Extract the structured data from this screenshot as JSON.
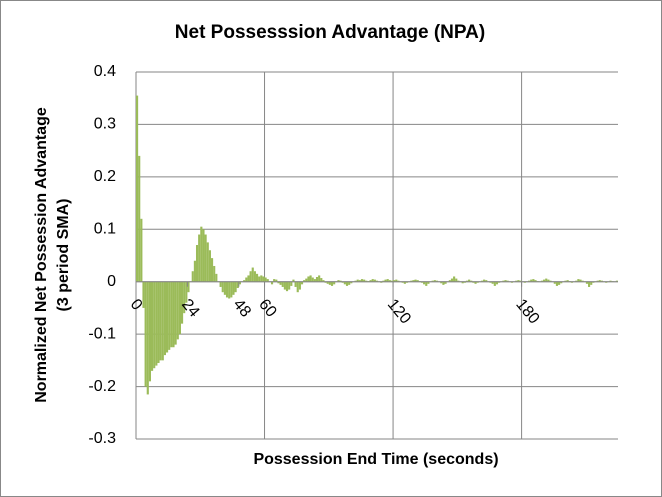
{
  "chart_data": {
    "type": "bar",
    "title": "Net Possesssion Advantage (NPA)",
    "x_label": "Possession End Time (seconds)",
    "y_label": [
      "Normalized Net Possession Advantage",
      "(3 period SMA)"
    ],
    "color": "#9bbb59",
    "x": [
      0,
      1,
      2,
      3,
      4,
      5,
      6,
      7,
      8,
      9,
      10,
      11,
      12,
      13,
      14,
      15,
      16,
      17,
      18,
      19,
      20,
      21,
      22,
      23,
      24,
      25,
      26,
      27,
      28,
      29,
      30,
      31,
      32,
      33,
      34,
      35,
      36,
      37,
      38,
      39,
      40,
      41,
      42,
      43,
      44,
      45,
      46,
      47,
      48,
      49,
      50,
      51,
      52,
      53,
      54,
      55,
      56,
      57,
      58,
      59,
      60,
      61,
      62,
      63,
      64,
      65,
      66,
      67,
      68,
      69,
      70,
      71,
      72,
      73,
      74,
      75,
      76,
      77,
      78,
      79,
      80,
      81,
      82,
      83,
      84,
      85,
      86,
      87,
      88,
      89,
      90,
      91,
      92,
      93,
      94,
      95,
      96,
      97,
      98,
      99,
      100,
      101,
      102,
      103,
      104,
      105,
      106,
      107,
      108,
      109,
      110,
      111,
      112,
      113,
      114,
      115,
      116,
      117,
      118,
      119,
      120,
      121,
      122,
      123,
      124,
      125,
      126,
      127,
      128,
      129,
      130,
      131,
      132,
      133,
      134,
      135,
      136,
      137,
      138,
      139,
      140,
      141,
      142,
      143,
      144,
      145,
      146,
      147,
      148,
      149,
      150,
      151,
      152,
      153,
      154,
      155,
      156,
      157,
      158,
      159,
      160,
      161,
      162,
      163,
      164,
      165,
      166,
      167,
      168,
      169,
      170,
      171,
      172,
      173,
      174,
      175,
      176,
      177,
      178,
      179,
      180,
      181,
      182,
      183,
      184,
      185,
      186,
      187,
      188,
      189,
      190,
      191,
      192,
      193,
      194,
      195,
      196,
      197,
      198,
      199,
      200,
      201,
      202,
      203,
      204,
      205,
      206,
      207,
      208,
      209,
      210,
      211,
      212,
      213,
      214,
      215,
      216,
      217,
      218,
      219,
      220,
      221,
      222,
      223,
      224
    ],
    "values": [
      0.355,
      0.24,
      0.12,
      -0.05,
      -0.2,
      -0.215,
      -0.19,
      -0.17,
      -0.165,
      -0.16,
      -0.155,
      -0.15,
      -0.15,
      -0.14,
      -0.135,
      -0.13,
      -0.125,
      -0.125,
      -0.12,
      -0.11,
      -0.1,
      -0.08,
      -0.06,
      -0.04,
      -0.02,
      0.0,
      0.02,
      0.04,
      0.07,
      0.09,
      0.105,
      0.1,
      0.09,
      0.075,
      0.06,
      0.045,
      0.03,
      0.015,
      0.0,
      -0.01,
      -0.02,
      -0.025,
      -0.03,
      -0.032,
      -0.03,
      -0.025,
      -0.02,
      -0.012,
      -0.005,
      0.0,
      0.003,
      0.008,
      0.012,
      0.02,
      0.027,
      0.02,
      0.015,
      0.01,
      0.012,
      0.01,
      0.008,
      0.005,
      0.0,
      -0.005,
      0.005,
      0.004,
      -0.003,
      -0.006,
      -0.01,
      -0.015,
      -0.018,
      -0.015,
      -0.008,
      0.004,
      -0.01,
      -0.02,
      -0.015,
      -0.005,
      0.003,
      0.006,
      0.01,
      0.012,
      0.008,
      0.005,
      0.009,
      0.012,
      0.007,
      0.003,
      -0.002,
      -0.004,
      -0.006,
      -0.008,
      -0.005,
      0.0,
      0.003,
      0.002,
      -0.002,
      -0.005,
      -0.008,
      -0.006,
      -0.003,
      0.0,
      0.002,
      0.004,
      0.003,
      0.005,
      0.004,
      0.002,
      0.001,
      0.003,
      0.005,
      0.004,
      0.002,
      0.0,
      -0.002,
      0.002,
      0.004,
      0.005,
      0.003,
      0.002,
      0.003,
      0.004,
      0.002,
      0.0,
      -0.002,
      -0.004,
      -0.002,
      0.0,
      0.002,
      0.003,
      0.004,
      0.003,
      0.001,
      -0.002,
      -0.005,
      -0.008,
      -0.004,
      0.0,
      0.002,
      0.003,
      0.002,
      0.0,
      -0.003,
      -0.006,
      -0.004,
      0.0,
      0.003,
      0.006,
      0.01,
      0.006,
      0.002,
      0.0,
      -0.003,
      -0.002,
      0.002,
      0.004,
      0.002,
      -0.002,
      -0.004,
      -0.002,
      0.0,
      0.002,
      0.004,
      0.003,
      0.0,
      -0.002,
      -0.004,
      -0.008,
      -0.005,
      -0.002,
      0.0,
      0.002,
      0.003,
      0.002,
      0.0,
      -0.002,
      0.0,
      0.002,
      0.003,
      0.002,
      0.0,
      -0.002,
      0.0,
      0.002,
      0.004,
      0.005,
      0.003,
      0.001,
      0.0,
      0.002,
      0.004,
      0.006,
      0.004,
      0.002,
      0.0,
      -0.004,
      -0.008,
      -0.006,
      -0.003,
      0.0,
      0.002,
      0.003,
      0.001,
      -0.002,
      0.0,
      0.002,
      0.005,
      0.004,
      0.002,
      0.0,
      -0.004,
      -0.01,
      -0.006,
      -0.002,
      0.0,
      0.002,
      0.003,
      0.002,
      0.0,
      -0.002,
      0.0,
      0.002,
      0.001,
      0.0,
      0.002
    ],
    "xlim": [
      0,
      225
    ],
    "xticks": [
      0,
      24,
      48,
      60,
      120,
      180
    ],
    "xgrid": [
      0,
      60,
      120,
      180
    ],
    "ylim": [
      -0.3,
      0.4
    ],
    "yticks": [
      0.4,
      0.3,
      0.2,
      0.1,
      0,
      -0.1,
      -0.2,
      -0.3
    ],
    "grid": true
  }
}
